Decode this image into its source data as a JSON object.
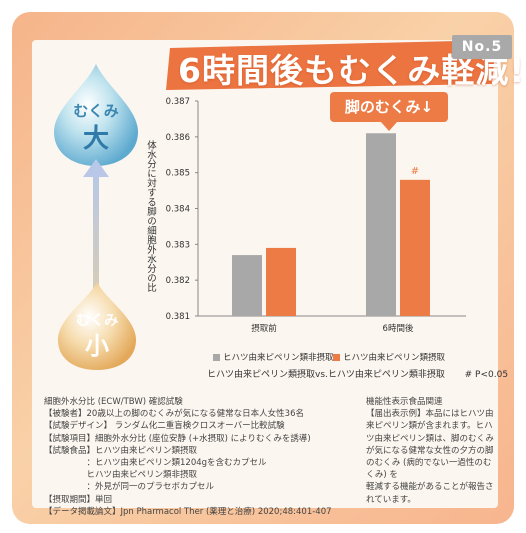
{
  "headline": {
    "text": "6時間後もむくみ軽減!",
    "badge": "No.5"
  },
  "drops": {
    "top": {
      "line1": "むくみ",
      "line2": "大"
    },
    "bottom": {
      "line1": "むくみ",
      "line2": "小"
    }
  },
  "callout": {
    "text": "脚のむくみ↓"
  },
  "colors": {
    "placebo": "#a8a8a8",
    "treatment": "#ec7b45",
    "accent": "#ec7b45"
  },
  "chart_data": {
    "type": "bar",
    "title": "",
    "ylabel": "体水分に対する脚の細胞外水分の比",
    "ylim": [
      0.381,
      0.387
    ],
    "yticks": [
      "0.381",
      "0.382",
      "0.383",
      "0.384",
      "0.385",
      "0.386",
      "0.387"
    ],
    "categories": [
      "摂取前",
      "6時間後"
    ],
    "series": [
      {
        "name": "ヒハツ由来ピペリン類非摂取",
        "values": [
          0.3827,
          0.3861
        ]
      },
      {
        "name": "ヒハツ由来ピペリン類摂取",
        "values": [
          0.3829,
          0.3848
        ]
      }
    ],
    "annotations": [
      "#"
    ],
    "caption": "ヒハツ由来ピペリン類摂取vs.ヒハツ由来ピペリン類非摂取",
    "significance": "# P<0.05"
  },
  "notes_left": [
    "細胞外水分比 (ECW/TBW) 確認試験",
    "【被験者】20歳以上の脚のむくみが気になる健常な日本人女性36名",
    "【試験デザイン】 ランダム化二重盲検クロスオーバー比較試験",
    "【試験項目】細胞外水分比 (座位安静 (+水摂取) によりむくみを誘導)",
    "【試験食品】ヒハツ由来ピペリン類摂取",
    "　　　　　：ヒハツ由来ピペリン類1204gを含むカプセル",
    "　　　　　ヒハツ由来ピペリン類非摂取",
    "　　　　　：外見が同一のプラセボカプセル",
    "【摂取期間】単回",
    "【データ掲載論文】Jpn Pharmacol Ther (薬理と治療) 2020;48:401-407"
  ],
  "notes_right": [
    "機能性表示食品関連",
    "【届出表示例】本品にはヒハツ由来ピペリン類が含まれます。ヒハツ由来ピペリン類は、脚のむくみが気になる健常な女性の夕方の脚のむくみ (病的でない一過性のむくみ) を",
    "軽減する機能があることが報告されています。"
  ]
}
